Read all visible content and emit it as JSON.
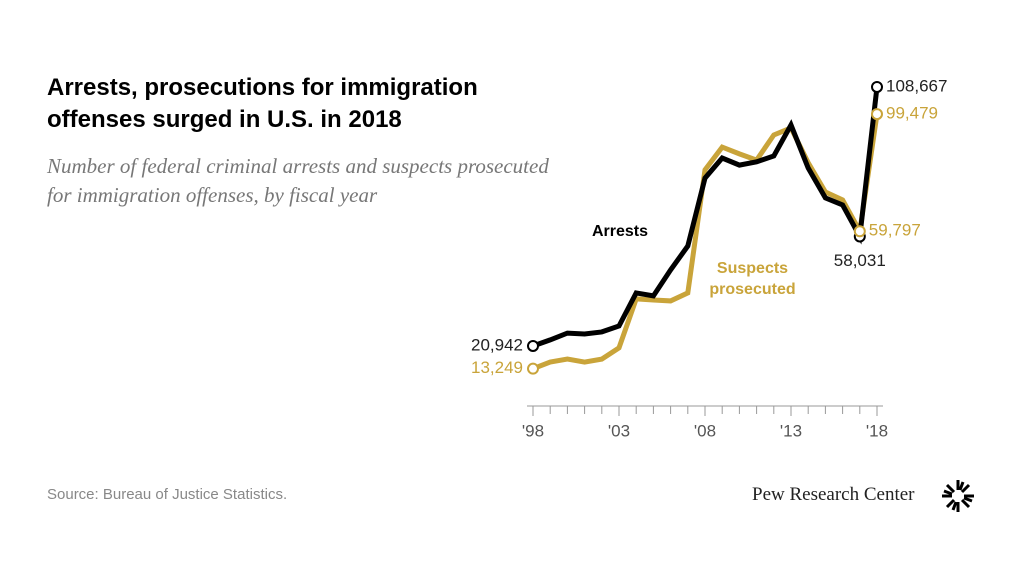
{
  "chart_data": {
    "type": "line",
    "title": "Arrests, prosecutions for immigration offenses surged in U.S. in 2018",
    "subtitle": "Number of federal criminal arrests and suspects prosecuted for immigration offenses, by fiscal year",
    "source": "Source: Bureau of Justice Statistics.",
    "credit": "Pew Research Center",
    "x": [
      1998,
      1999,
      2000,
      2001,
      2002,
      2003,
      2004,
      2005,
      2006,
      2007,
      2008,
      2009,
      2010,
      2011,
      2012,
      2013,
      2014,
      2015,
      2016,
      2017,
      2018
    ],
    "xlim": [
      1998,
      2018
    ],
    "xticks": [
      {
        "value": 1998,
        "label": "'98"
      },
      {
        "value": 2003,
        "label": "'03"
      },
      {
        "value": 2008,
        "label": "'08"
      },
      {
        "value": 2013,
        "label": "'13"
      },
      {
        "value": 2018,
        "label": "'18"
      }
    ],
    "ylim": [
      0,
      120000
    ],
    "series": [
      {
        "name": "Arrests",
        "color": "#000000",
        "values": [
          20942,
          23000,
          25300,
          25000,
          25700,
          27700,
          38900,
          37900,
          46700,
          54800,
          77800,
          84600,
          82200,
          83300,
          85300,
          95800,
          81200,
          71100,
          68700,
          58031,
          108667
        ],
        "value_labels": [
          "20,942",
          null,
          null,
          null,
          null,
          null,
          null,
          null,
          null,
          null,
          null,
          null,
          null,
          null,
          null,
          null,
          null,
          null,
          null,
          "58,031",
          "108,667"
        ]
      },
      {
        "name": "Suspects prosecuted",
        "color": "#c9a43a",
        "values": [
          13249,
          15500,
          16500,
          15500,
          16500,
          20300,
          36900,
          36500,
          36200,
          38900,
          80600,
          88300,
          86000,
          83900,
          92400,
          94800,
          83000,
          73100,
          70400,
          59797,
          99479
        ],
        "value_labels": [
          "13,249",
          null,
          null,
          null,
          null,
          null,
          null,
          null,
          null,
          null,
          null,
          null,
          null,
          null,
          null,
          null,
          null,
          null,
          null,
          "59,797",
          "99,479"
        ]
      }
    ]
  }
}
